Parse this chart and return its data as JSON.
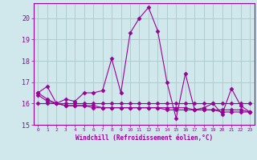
{
  "background_color": "#d0e8ec",
  "grid_color": "#b0cccc",
  "line_color": "#990099",
  "marker": "D",
  "markersize": 2.5,
  "xlabel": "Windchill (Refroidissement éolien,°C)",
  "xlim": [
    -0.5,
    23.5
  ],
  "ylim": [
    15,
    20.7
  ],
  "yticks": [
    15,
    16,
    17,
    18,
    19,
    20
  ],
  "xticks": [
    0,
    1,
    2,
    3,
    4,
    5,
    6,
    7,
    8,
    9,
    10,
    11,
    12,
    13,
    14,
    15,
    16,
    17,
    18,
    19,
    20,
    21,
    22,
    23
  ],
  "series": [
    {
      "x": [
        0,
        1,
        2,
        3,
        4,
        5,
        6,
        7,
        8,
        9,
        10,
        11,
        12,
        13,
        14,
        15,
        16,
        17,
        18,
        19,
        20,
        21,
        22,
        23
      ],
      "y": [
        16.5,
        16.8,
        16.0,
        16.2,
        16.1,
        16.5,
        16.5,
        16.6,
        18.1,
        16.5,
        19.3,
        20.0,
        20.5,
        19.4,
        17.0,
        15.3,
        17.4,
        15.7,
        15.8,
        16.0,
        15.5,
        16.7,
        15.9,
        15.6
      ]
    },
    {
      "x": [
        0,
        1,
        2,
        3,
        4,
        5,
        6,
        7,
        8,
        9,
        10,
        11,
        12,
        13,
        14,
        15,
        16,
        17,
        18,
        19,
        20,
        21,
        22,
        23
      ],
      "y": [
        16.0,
        16.0,
        16.0,
        16.0,
        16.0,
        16.0,
        16.0,
        16.0,
        16.0,
        16.0,
        16.0,
        16.0,
        16.0,
        16.0,
        16.0,
        16.0,
        16.0,
        16.0,
        16.0,
        16.0,
        16.0,
        16.0,
        16.0,
        16.0
      ]
    },
    {
      "x": [
        0,
        1,
        2,
        3,
        4,
        5,
        6,
        7,
        8,
        9,
        10,
        11,
        12,
        13,
        14,
        15,
        16,
        17,
        18,
        19,
        20,
        21,
        22,
        23
      ],
      "y": [
        16.5,
        16.2,
        16.0,
        15.9,
        15.9,
        15.9,
        15.9,
        15.8,
        15.8,
        15.8,
        15.8,
        15.8,
        15.8,
        15.8,
        15.8,
        15.8,
        15.8,
        15.7,
        15.7,
        15.7,
        15.7,
        15.7,
        15.7,
        15.6
      ]
    },
    {
      "x": [
        0,
        1,
        2,
        3,
        4,
        5,
        6,
        7,
        8,
        9,
        10,
        11,
        12,
        13,
        14,
        15,
        16,
        17,
        18,
        19,
        20,
        21,
        22,
        23
      ],
      "y": [
        16.4,
        16.1,
        16.0,
        15.9,
        15.9,
        15.9,
        15.8,
        15.8,
        15.8,
        15.8,
        15.8,
        15.8,
        15.8,
        15.8,
        15.7,
        15.7,
        15.7,
        15.7,
        15.7,
        15.7,
        15.6,
        15.6,
        15.6,
        15.6
      ]
    }
  ]
}
